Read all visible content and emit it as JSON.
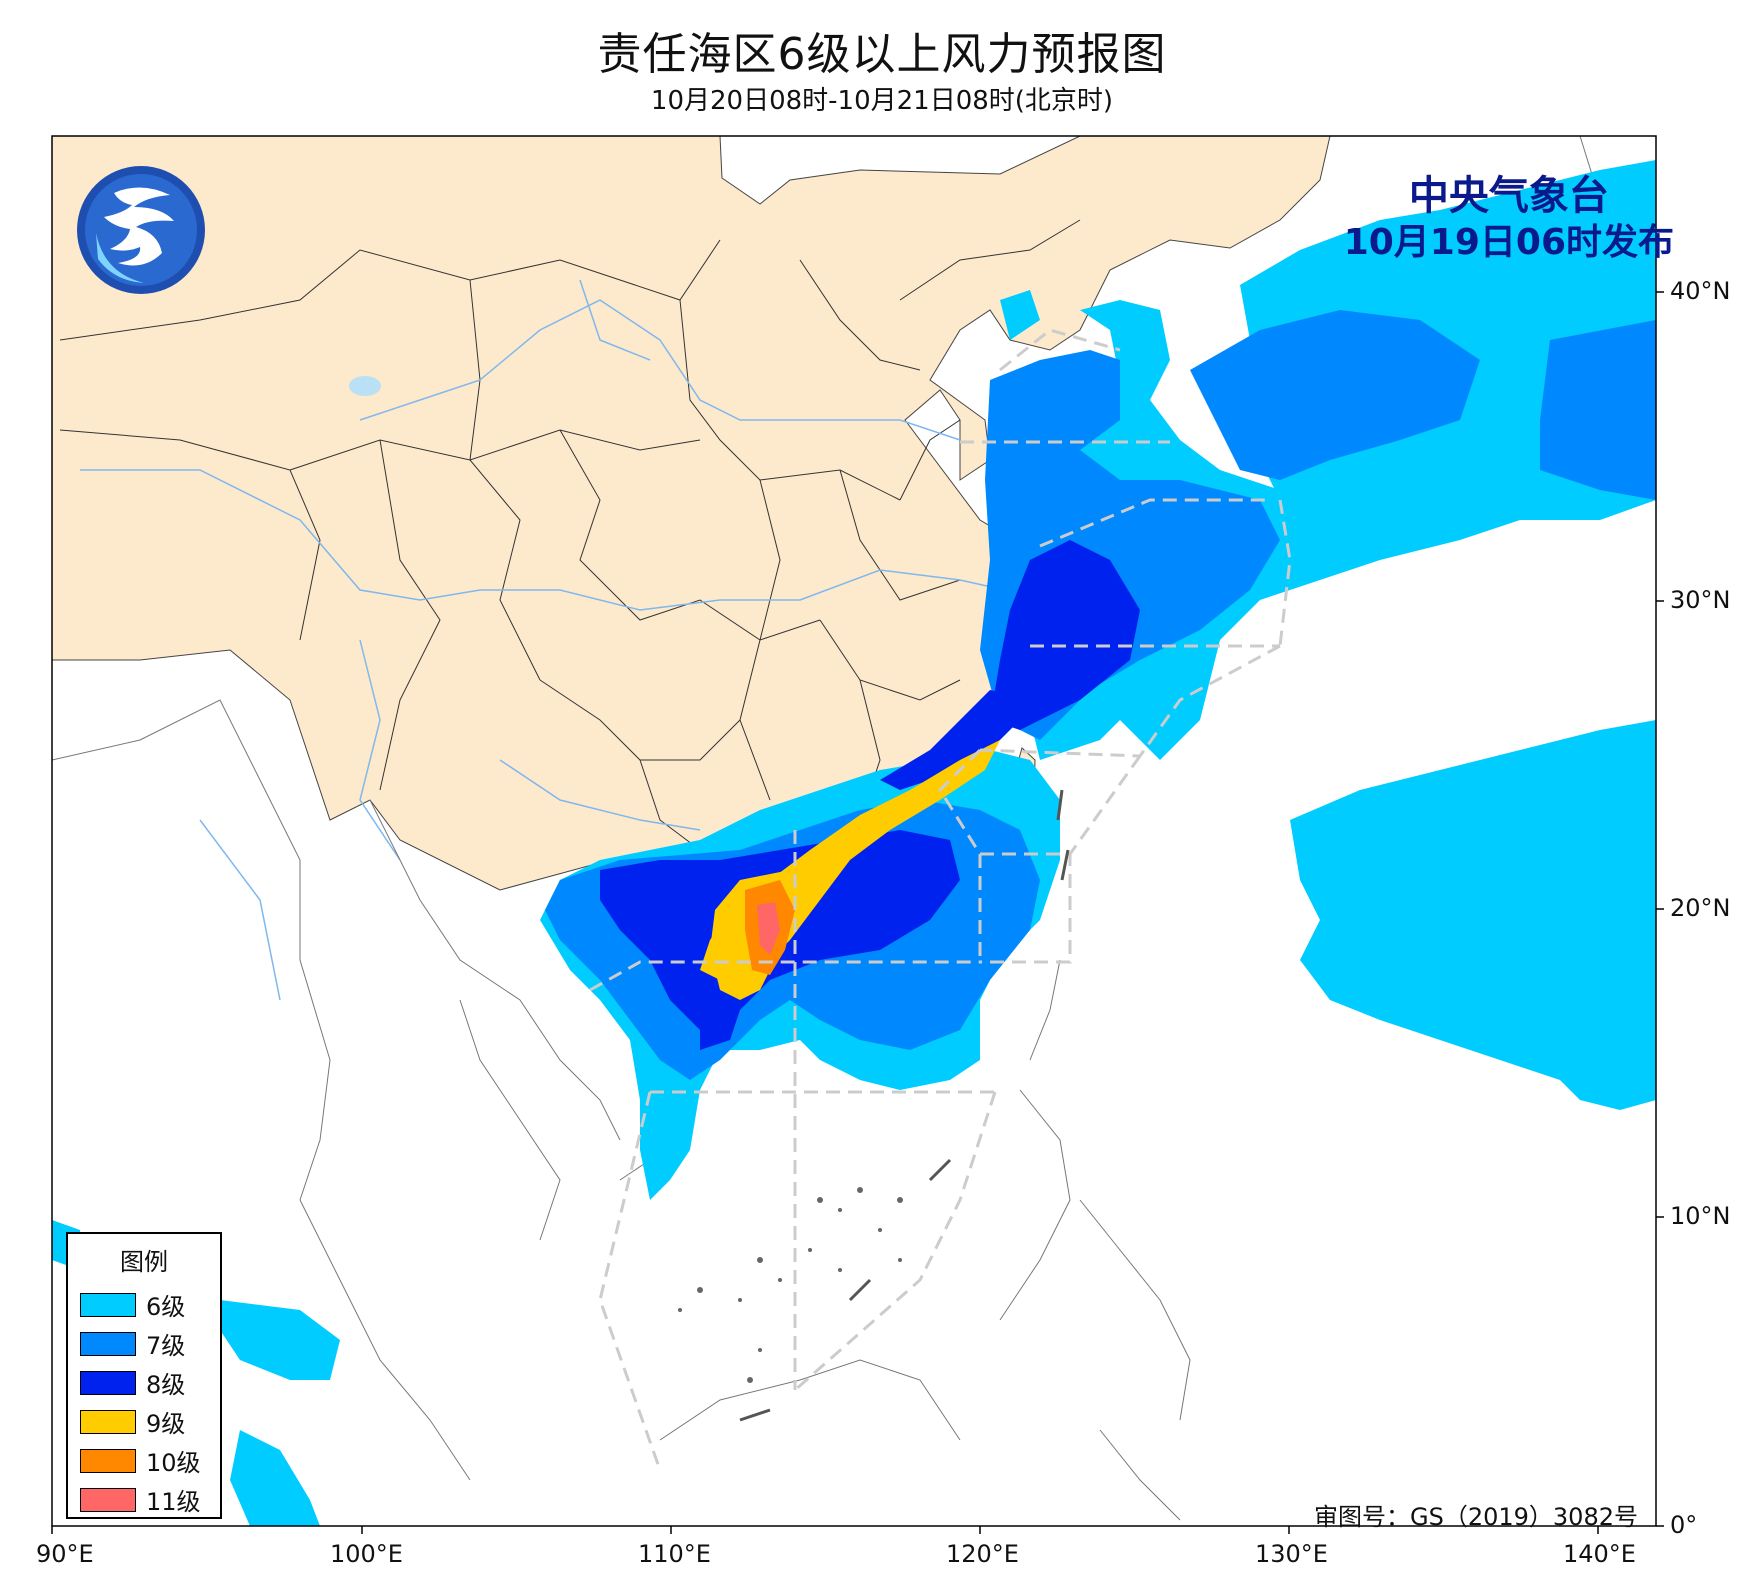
{
  "title": "责任海区6级以上风力预报图",
  "subtitle": "10月20日08时-10月21日08时(北京时)",
  "issuer": {
    "org": "中央气象台",
    "time": "10月19日06时发布"
  },
  "logo_icon": "cma-logo-icon",
  "legend": {
    "title": "图例",
    "items": [
      {
        "label": "6级",
        "color": "#00ccff"
      },
      {
        "label": "7级",
        "color": "#0088ff"
      },
      {
        "label": "8级",
        "color": "#0022ee"
      },
      {
        "label": "9级",
        "color": "#ffcc00"
      },
      {
        "label": "10级",
        "color": "#ff8800"
      },
      {
        "label": "11级",
        "color": "#ff6666"
      }
    ]
  },
  "approval": "审图号：GS（2019）3082号",
  "axes": {
    "x_ticks": [
      "90°E",
      "100°E",
      "110°E",
      "120°E",
      "130°E",
      "140°E"
    ],
    "y_ticks": [
      "40°N",
      "30°N",
      "20°N",
      "10°N",
      "0°"
    ],
    "lon_range": [
      90,
      142
    ],
    "lat_range": [
      0,
      45
    ]
  },
  "colors": {
    "land_china": "#fde9cc",
    "river": "#7fb8ee",
    "boundary": "#333333",
    "sea_area_line": "#cccccc"
  }
}
